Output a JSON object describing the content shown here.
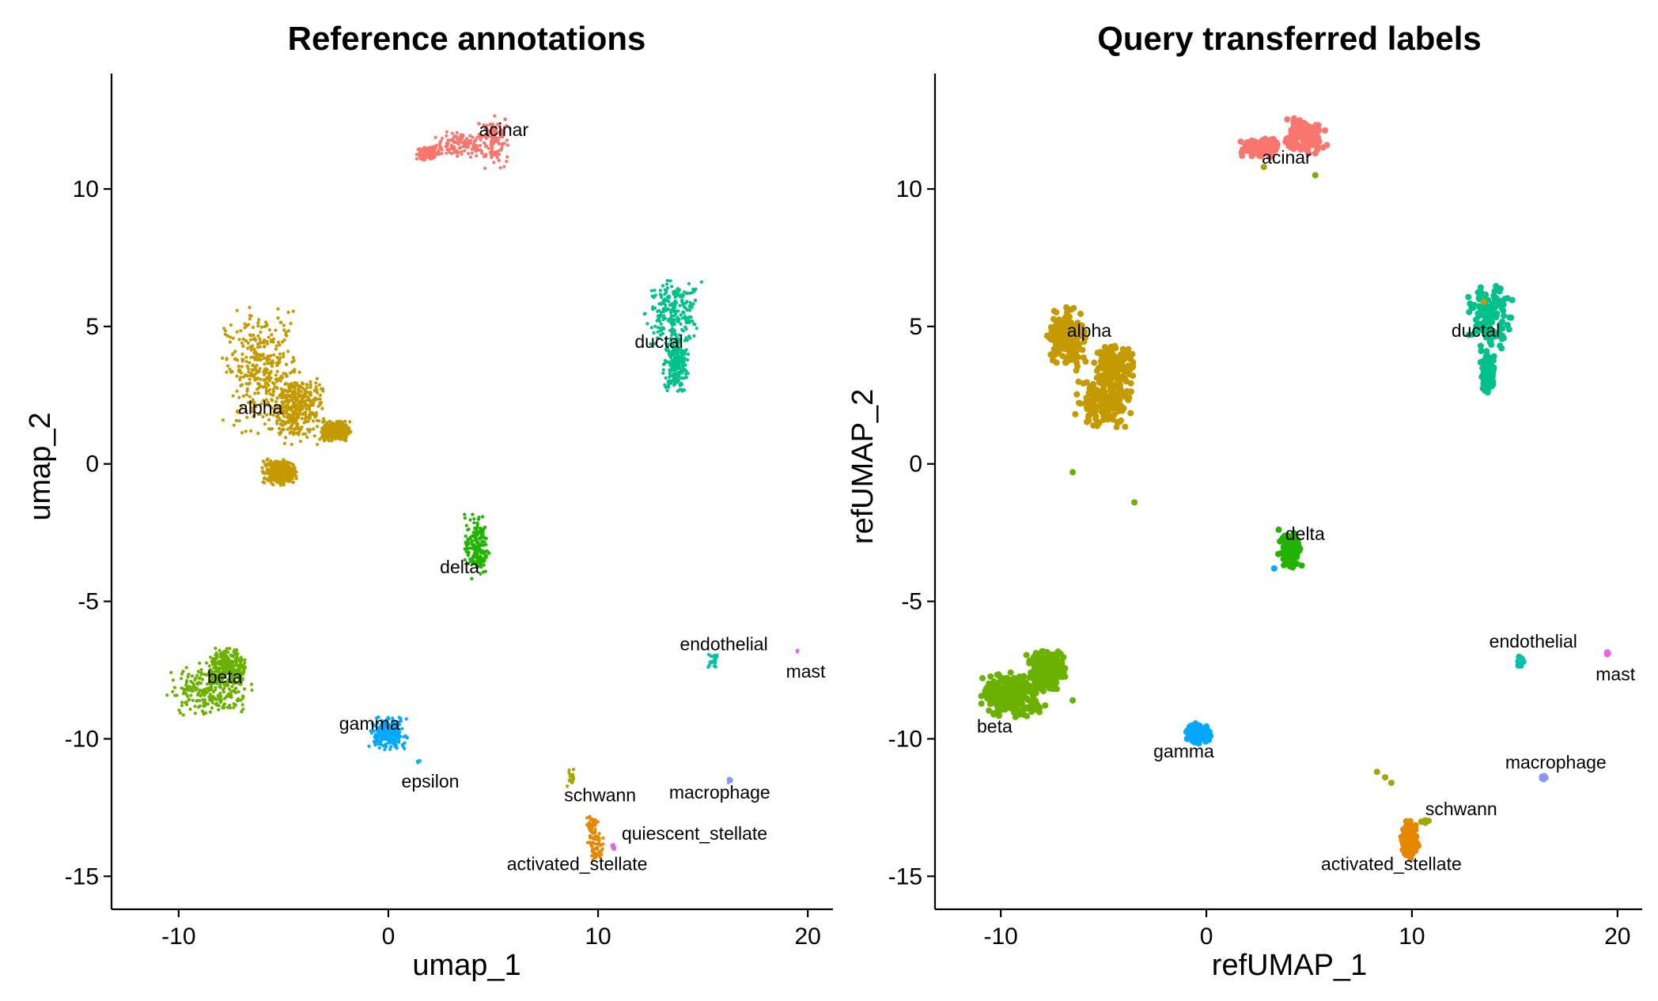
{
  "colors": {
    "acinar": "#F8766D",
    "activated_stellate": "#E58700",
    "alpha": "#C49A00",
    "beta": "#6BB100",
    "delta": "#22B200",
    "ductal": "#00C08B",
    "endothelial": "#00C1AA",
    "epsilon": "#00BAE0",
    "gamma": "#00A9FF",
    "macrophage": "#8B93FF",
    "mast": "#EE63E5",
    "quiescent_stellate": "#E45EEC",
    "schwann": "#A3A500"
  },
  "chart_data": [
    {
      "type": "scatter",
      "title": "Reference annotations",
      "xlabel": "umap_1",
      "ylabel": "umap_2",
      "xlim": [
        -13.2,
        21.2
      ],
      "ylim": [
        -16.2,
        14.2
      ],
      "xticks": [
        -10,
        0,
        10,
        20
      ],
      "xtick_labels": [
        "-10",
        "0",
        "10",
        "20"
      ],
      "yticks": [
        -15,
        -10,
        -5,
        0,
        5,
        10
      ],
      "ytick_labels": [
        "-15",
        "-10",
        "-5",
        "0",
        "5",
        "10"
      ],
      "grid": false,
      "legend": "none",
      "point_size": "small",
      "clusters": [
        {
          "name": "acinar",
          "label_at": [
            5.5,
            12.1
          ],
          "n": 350,
          "points": [
            [
              3.5,
              11.6,
              1.1,
              0.4
            ],
            [
              5.0,
              11.8,
              0.7,
              0.9
            ],
            [
              1.9,
              11.3,
              0.5,
              0.2
            ]
          ]
        },
        {
          "name": "ductal",
          "label_at": [
            12.9,
            4.4
          ],
          "n": 450,
          "points": [
            [
              13.6,
              5.5,
              1.2,
              1.0
            ],
            [
              13.7,
              3.6,
              0.5,
              0.9
            ]
          ]
        },
        {
          "name": "alpha",
          "label_at": [
            -6.1,
            2.0
          ],
          "n": 1400,
          "points": [
            [
              -6.0,
              3.4,
              1.6,
              1.9
            ],
            [
              -4.4,
              2.0,
              1.1,
              1.1
            ],
            [
              -2.5,
              1.2,
              0.6,
              0.3
            ],
            [
              -5.2,
              -0.3,
              0.7,
              0.4
            ]
          ]
        },
        {
          "name": "delta",
          "label_at": [
            3.4,
            -3.8
          ],
          "n": 180,
          "points": [
            [
              4.2,
              -3.0,
              0.5,
              1.0
            ]
          ]
        },
        {
          "name": "beta",
          "label_at": [
            -7.8,
            -7.8
          ],
          "n": 500,
          "points": [
            [
              -8.5,
              -8.2,
              1.7,
              0.8
            ],
            [
              -7.6,
              -7.4,
              0.8,
              0.6
            ]
          ]
        },
        {
          "name": "gamma",
          "label_at": [
            -0.9,
            -9.5
          ],
          "n": 220,
          "points": [
            [
              0.0,
              -9.8,
              0.8,
              0.5
            ]
          ]
        },
        {
          "name": "epsilon",
          "label_at": [
            2.0,
            -11.6
          ],
          "n": 6,
          "points": [
            [
              1.4,
              -10.8,
              0.15,
              0.1
            ]
          ]
        },
        {
          "name": "endothelial",
          "label_at": [
            16.0,
            -6.6
          ],
          "n": 20,
          "points": [
            [
              15.5,
              -7.2,
              0.25,
              0.25
            ]
          ]
        },
        {
          "name": "mast",
          "label_at": [
            19.9,
            -7.6
          ],
          "n": 3,
          "points": [
            [
              19.5,
              -6.8,
              0.05,
              0.05
            ]
          ]
        },
        {
          "name": "macrophage",
          "label_at": [
            15.8,
            -12.0
          ],
          "n": 8,
          "points": [
            [
              16.3,
              -11.5,
              0.12,
              0.12
            ]
          ]
        },
        {
          "name": "schwann",
          "label_at": [
            10.1,
            -12.1
          ],
          "n": 18,
          "points": [
            [
              8.7,
              -11.4,
              0.25,
              0.3
            ]
          ]
        },
        {
          "name": "activated_stellate",
          "label_at": [
            9.0,
            -14.6
          ],
          "n": 110,
          "points": [
            [
              9.9,
              -14.0,
              0.35,
              0.5
            ],
            [
              9.7,
              -13.2,
              0.25,
              0.4
            ]
          ]
        },
        {
          "name": "quiescent_stellate",
          "label_at": [
            14.6,
            -13.5
          ],
          "n": 6,
          "points": [
            [
              10.7,
              -14.0,
              0.1,
              0.15
            ]
          ]
        }
      ]
    },
    {
      "type": "scatter",
      "title": "Query transferred labels",
      "xlabel": "refUMAP_1",
      "ylabel": "refUMAP_2",
      "xlim": [
        -13.2,
        21.2
      ],
      "ylim": [
        -16.2,
        14.2
      ],
      "xticks": [
        -10,
        0,
        10,
        20
      ],
      "xtick_labels": [
        "-10",
        "0",
        "10",
        "20"
      ],
      "yticks": [
        -15,
        -10,
        -5,
        0,
        5,
        10
      ],
      "ytick_labels": [
        "-15",
        "-10",
        "-5",
        "0",
        "5",
        "10"
      ],
      "grid": false,
      "legend": "none",
      "point_size": "large",
      "clusters": [
        {
          "name": "acinar",
          "label_at": [
            3.9,
            11.1
          ],
          "n": 260,
          "points": [
            [
              4.8,
              11.9,
              0.9,
              0.6
            ],
            [
              2.6,
              11.5,
              0.8,
              0.3
            ]
          ]
        },
        {
          "name": "ductal",
          "label_at": [
            13.1,
            4.8
          ],
          "n": 260,
          "points": [
            [
              13.8,
              5.3,
              0.9,
              1.0
            ],
            [
              13.7,
              3.3,
              0.3,
              0.6
            ]
          ]
        },
        {
          "name": "alpha",
          "label_at": [
            -5.7,
            4.8
          ],
          "n": 500,
          "points": [
            [
              -6.8,
              4.6,
              0.8,
              1.0
            ],
            [
              -5.0,
              2.3,
              1.2,
              0.8
            ],
            [
              -4.5,
              3.6,
              0.8,
              0.6
            ]
          ]
        },
        {
          "name": "delta",
          "label_at": [
            4.8,
            -2.6
          ],
          "n": 110,
          "points": [
            [
              4.1,
              -3.1,
              0.5,
              0.6
            ]
          ]
        },
        {
          "name": "beta",
          "label_at": [
            -10.3,
            -9.6
          ],
          "n": 550,
          "points": [
            [
              -9.4,
              -8.4,
              1.3,
              0.7
            ],
            [
              -7.8,
              -7.5,
              0.8,
              0.6
            ]
          ]
        },
        {
          "name": "gamma",
          "label_at": [
            -1.1,
            -10.5
          ],
          "n": 110,
          "points": [
            [
              -0.4,
              -9.8,
              0.5,
              0.3
            ]
          ]
        },
        {
          "name": "endothelial",
          "label_at": [
            15.9,
            -6.5
          ],
          "n": 12,
          "points": [
            [
              15.3,
              -7.2,
              0.15,
              0.2
            ]
          ]
        },
        {
          "name": "mast",
          "label_at": [
            19.9,
            -7.7
          ],
          "n": 4,
          "points": [
            [
              19.5,
              -6.9,
              0.05,
              0.05
            ]
          ]
        },
        {
          "name": "macrophage",
          "label_at": [
            17.0,
            -10.9
          ],
          "n": 8,
          "points": [
            [
              16.4,
              -11.4,
              0.1,
              0.1
            ]
          ]
        },
        {
          "name": "schwann",
          "label_at": [
            12.4,
            -12.6
          ],
          "n": 6,
          "points": [
            [
              10.6,
              -13.0,
              0.2,
              0.05
            ]
          ]
        },
        {
          "name": "activated_stellate",
          "label_at": [
            9.0,
            -14.6
          ],
          "n": 100,
          "points": [
            [
              9.9,
              -13.7,
              0.35,
              0.6
            ]
          ]
        }
      ],
      "stray_points": [
        {
          "name": "schwann",
          "xy": [
            [
              8.3,
              -11.2
            ],
            [
              8.7,
              -11.4
            ],
            [
              9.0,
              -11.6
            ],
            [
              2.8,
              10.8
            ]
          ]
        },
        {
          "name": "beta",
          "xy": [
            [
              -6.5,
              -0.3
            ],
            [
              -3.5,
              -1.4
            ],
            [
              -6.5,
              -8.6
            ],
            [
              5.3,
              10.5
            ]
          ]
        },
        {
          "name": "gamma",
          "xy": [
            [
              3.3,
              -3.8
            ]
          ]
        },
        {
          "name": "alpha",
          "xy": [
            [
              13.5,
              5.9
            ]
          ]
        }
      ]
    }
  ]
}
